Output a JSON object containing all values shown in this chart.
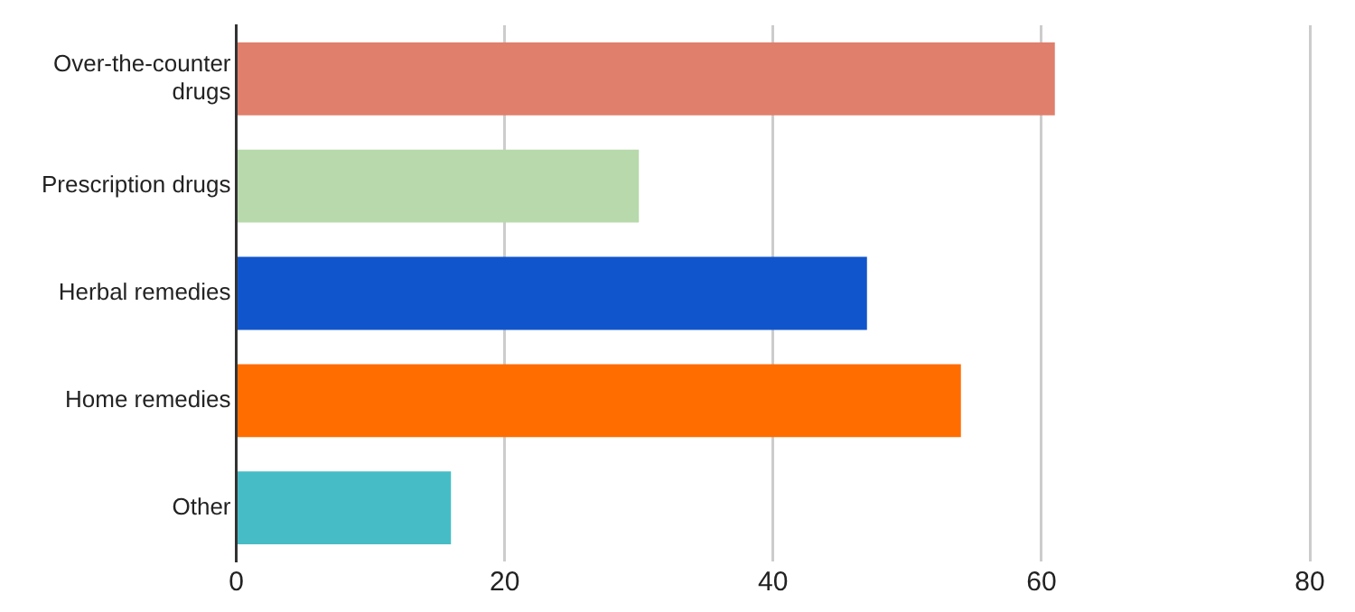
{
  "chart_data": {
    "type": "bar",
    "orientation": "horizontal",
    "categories": [
      "Over-the-counter drugs",
      "Prescription drugs",
      "Herbal remedies",
      "Home remedies",
      "Other"
    ],
    "values": [
      61,
      30,
      47,
      54,
      16
    ],
    "colors": [
      "#e07f6c",
      "#b7d9ab",
      "#1155cc",
      "#ff6d00",
      "#46bdc6"
    ],
    "xlim": [
      0,
      80
    ],
    "xticks": [
      0,
      20,
      40,
      60,
      80
    ],
    "grid": "x",
    "legend": false
  }
}
